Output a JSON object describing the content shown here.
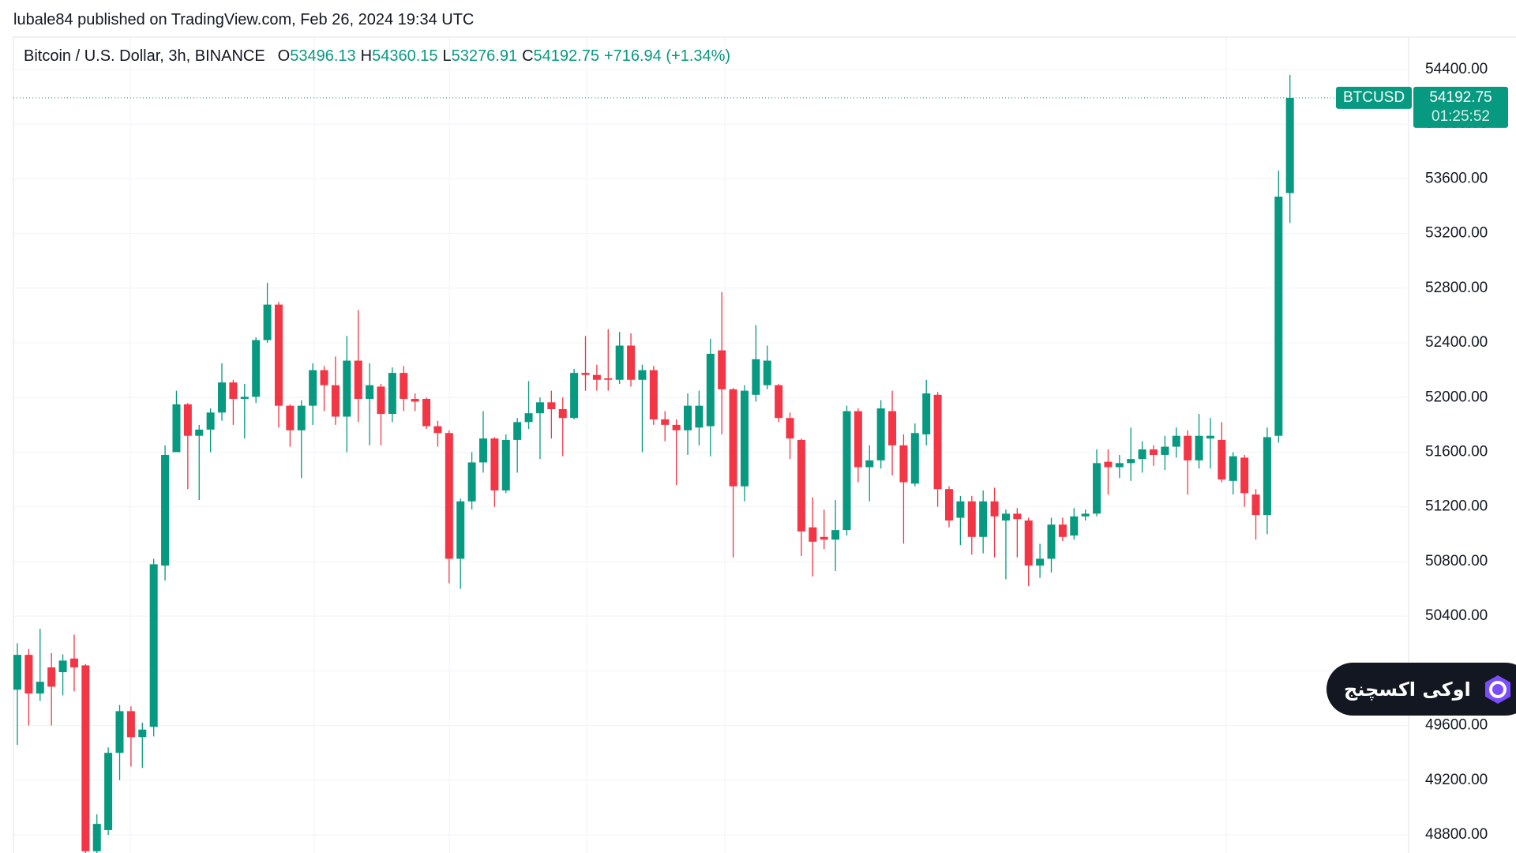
{
  "published": "lubale84 published on TradingView.com, Feb 26, 2024 19:34 UTC",
  "chart_data": {
    "type": "candlestick",
    "title": "Bitcoin / U.S. Dollar, 3h, BINANCE",
    "legend_labels": [
      "O",
      "H",
      "L",
      "C"
    ],
    "change": "+716.94 (+1.34%)",
    "symbol": "BTCUSD",
    "countdown": "01:25:52",
    "up_color": "#089981",
    "down_color": "#f23645",
    "grid": true,
    "ylim": [
      48667,
      54637
    ],
    "yticks": [
      {
        "value": 48800,
        "label": "48800.00"
      },
      {
        "value": 49200,
        "label": "49200.00"
      },
      {
        "value": 49600,
        "label": "49600.00"
      },
      {
        "value": 50000,
        "label": "50000.00"
      },
      {
        "value": 50400,
        "label": "50400.00"
      },
      {
        "value": 50800,
        "label": "50800.00"
      },
      {
        "value": 51200,
        "label": "51200.00"
      },
      {
        "value": 51600,
        "label": "51600.00"
      },
      {
        "value": 52000,
        "label": "52000.00"
      },
      {
        "value": 52400,
        "label": "52400.00"
      },
      {
        "value": 52800,
        "label": "52800.00"
      },
      {
        "value": 53200,
        "label": "53200.00"
      },
      {
        "value": 53600,
        "label": "53600.00"
      },
      {
        "value": 54000,
        "label": "54000.00"
      },
      {
        "value": 54400,
        "label": "54400.00"
      }
    ],
    "open": [
      49862,
      50117,
      49834,
      50025,
      49990,
      50090,
      50040,
      48680,
      48835,
      49400,
      49705,
      49515,
      49590,
      50770,
      51600,
      51950,
      51720,
      51765,
      51890,
      52110,
      51990,
      52005,
      52420,
      52680,
      51940,
      51760,
      51940,
      52200,
      52090,
      51860,
      52270,
      51990,
      52080,
      51880,
      52180,
      51990,
      51990,
      51790,
      51740,
      50820,
      51240,
      51525,
      51700,
      51320,
      51690,
      51820,
      51885,
      51965,
      51915,
      51850,
      52180,
      52165,
      52140,
      52130,
      52380,
      52130,
      52200,
      51840,
      51800,
      51760,
      51780,
      51790,
      52345,
      52060,
      51350,
      52020,
      52090,
      52090,
      51850,
      51690,
      51050,
      50980,
      50960,
      51030,
      51900,
      51490,
      51540,
      51900,
      51650,
      51370,
      51730,
      52020,
      51330,
      51120,
      51240,
      50980,
      51240,
      51100,
      51150,
      51100,
      50770,
      50820,
      51070,
      50990,
      51130,
      51150,
      51530,
      51490,
      51520,
      51550,
      51620,
      51580,
      51640,
      51720,
      51540,
      51700,
      51690,
      51390,
      51560,
      51290,
      51140,
      51720,
      53496.13
    ],
    "high": [
      50202,
      50160,
      50308,
      50130,
      50120,
      50265,
      50050,
      48950,
      49440,
      49750,
      49740,
      49620,
      50820,
      51650,
      52050,
      51960,
      51800,
      51920,
      52250,
      52130,
      52100,
      52440,
      52840,
      52700,
      51950,
      51980,
      52250,
      52230,
      52300,
      52450,
      52640,
      52250,
      52100,
      52220,
      52230,
      52030,
      52000,
      51830,
      51760,
      51260,
      51600,
      51900,
      51710,
      51730,
      51850,
      52120,
      52000,
      52050,
      52000,
      52210,
      52450,
      52240,
      52500,
      52480,
      52470,
      52240,
      52230,
      51900,
      51840,
      52030,
      52050,
      52430,
      52770,
      52070,
      52090,
      52530,
      52380,
      52100,
      51890,
      51700,
      51270,
      51180,
      51250,
      51940,
      51920,
      51650,
      51980,
      52050,
      51730,
      51810,
      52130,
      52040,
      51350,
      51280,
      51280,
      51320,
      51340,
      51180,
      51190,
      51120,
      50930,
      51120,
      51120,
      51190,
      51180,
      51620,
      51620,
      51580,
      51780,
      51680,
      51650,
      51720,
      51780,
      51760,
      51880,
      51850,
      51820,
      51600,
      51580,
      51330,
      51780,
      53660,
      54360.15
    ],
    "low": [
      49458,
      49600,
      49780,
      49600,
      49820,
      49850,
      48600,
      48600,
      48800,
      49200,
      49300,
      49290,
      49520,
      50660,
      51600,
      51330,
      51250,
      51600,
      51830,
      51800,
      51700,
      51960,
      52400,
      51780,
      51640,
      51410,
      51800,
      51900,
      51800,
      51600,
      51820,
      51650,
      51650,
      51820,
      51900,
      51900,
      51770,
      51640,
      50640,
      50600,
      51180,
      51450,
      51200,
      51300,
      51450,
      51770,
      51550,
      51700,
      51570,
      51840,
      52050,
      52050,
      52050,
      52100,
      52080,
      51600,
      51800,
      51680,
      51360,
      51580,
      51650,
      51570,
      51730,
      50830,
      51240,
      51970,
      52060,
      51820,
      51550,
      50840,
      50690,
      50890,
      50730,
      50990,
      51380,
      51240,
      51480,
      51430,
      50930,
      51350,
      51650,
      51200,
      51050,
      50920,
      50850,
      50860,
      50830,
      50670,
      50830,
      50620,
      50680,
      50720,
      50950,
      50960,
      51100,
      51130,
      51290,
      51410,
      51390,
      51450,
      51500,
      51470,
      51560,
      51290,
      51480,
      51480,
      51380,
      51290,
      51200,
      50960,
      51000,
      51670,
      53276.91
    ],
    "close": [
      50117,
      49834,
      49920,
      49884,
      50075,
      50025,
      48680,
      48880,
      49400,
      49705,
      49515,
      49570,
      50780,
      51580,
      51950,
      51720,
      51765,
      51890,
      52110,
      51990,
      52005,
      52420,
      52680,
      51940,
      51760,
      51940,
      52200,
      52090,
      51860,
      52270,
      51990,
      52090,
      51880,
      52180,
      51990,
      51970,
      51790,
      51740,
      50820,
      51240,
      51525,
      51700,
      51320,
      51690,
      51820,
      51885,
      51965,
      51915,
      51850,
      52180,
      52165,
      52130,
      52130,
      52380,
      52130,
      52200,
      51840,
      51800,
      51760,
      51940,
      51940,
      52320,
      52060,
      51350,
      52050,
      52280,
      52270,
      51850,
      51700,
      51020,
      50945,
      50960,
      51030,
      51900,
      51490,
      51540,
      51920,
      51650,
      51380,
      51740,
      52030,
      51330,
      51100,
      51240,
      50980,
      51240,
      51130,
      51150,
      51110,
      50770,
      50820,
      51070,
      50980,
      51130,
      51150,
      51520,
      51490,
      51520,
      51550,
      51620,
      51580,
      51640,
      51720,
      51540,
      51720,
      51720,
      51400,
      51570,
      51300,
      51140,
      51710,
      53470,
      54192.75
    ]
  },
  "watermark": "اوکی اکسچنج"
}
